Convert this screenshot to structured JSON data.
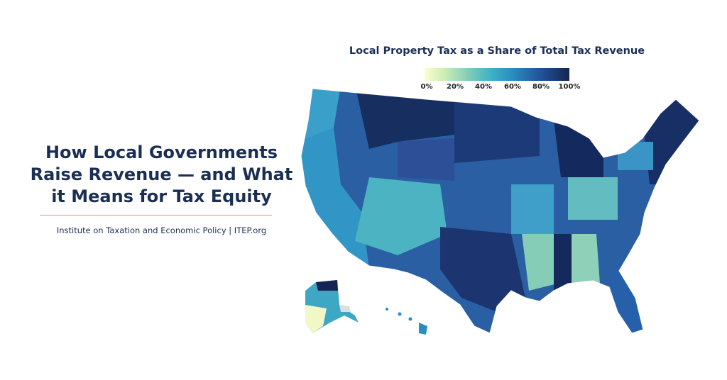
{
  "headline": {
    "lines": [
      "How Local Governments",
      "Raise Revenue — and What",
      "it Means for Tax Equity"
    ]
  },
  "source": "Institute on Taxation and Economic Policy | ITEP.org",
  "map": {
    "title": "Local Property Tax as a Share of Total Tax Revenue",
    "legend": {
      "ticks": [
        "0%",
        "20%",
        "40%",
        "60%",
        "80%",
        "100%"
      ],
      "colors": [
        "#fdfdd0",
        "#c6ebb4",
        "#83cdb9",
        "#3fb4c4",
        "#2a8fc0",
        "#2458a0",
        "#142553"
      ]
    },
    "accent_rule_color": "#e0928c",
    "text_color": "#1b2f55"
  }
}
